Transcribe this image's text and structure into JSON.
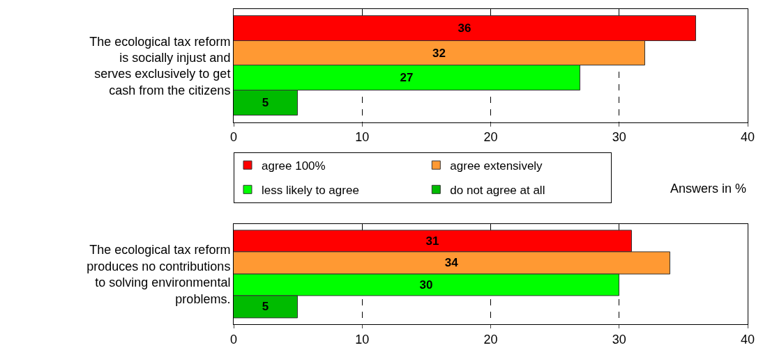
{
  "chart_data": [
    {
      "type": "bar",
      "orientation": "horizontal",
      "categories": [
        "The ecological tax reform is socially injust and serves exclusively to get cash from the citizens"
      ],
      "series": [
        {
          "name": "agree 100%",
          "color": "#ff0000",
          "values": [
            36
          ]
        },
        {
          "name": "agree extensively",
          "color": "#ff9933",
          "values": [
            32
          ]
        },
        {
          "name": "less likely to agree",
          "color": "#00ff00",
          "values": [
            27
          ]
        },
        {
          "name": "do not agree at all",
          "color": "#00bb00",
          "values": [
            5
          ]
        }
      ],
      "xlim": [
        0,
        40
      ],
      "xticks": [
        0,
        10,
        20,
        30,
        40
      ],
      "grid": "x",
      "data_labels": true,
      "legend": "bottom",
      "annotations": [
        "Answers in %"
      ]
    },
    {
      "type": "bar",
      "orientation": "horizontal",
      "categories": [
        "The ecological tax reform produces no contributions to solving environmental problems."
      ],
      "series": [
        {
          "color": "#ff0000",
          "values": [
            31
          ]
        },
        {
          "color": "#ff9933",
          "values": [
            34
          ]
        },
        {
          "color": "#00ff00",
          "values": [
            30
          ]
        },
        {
          "color": "#00bb00",
          "values": [
            5
          ]
        }
      ],
      "xlim": [
        0,
        40
      ],
      "xticks": [
        0,
        10,
        20,
        30,
        40
      ],
      "grid": "x",
      "data_labels": true
    }
  ]
}
